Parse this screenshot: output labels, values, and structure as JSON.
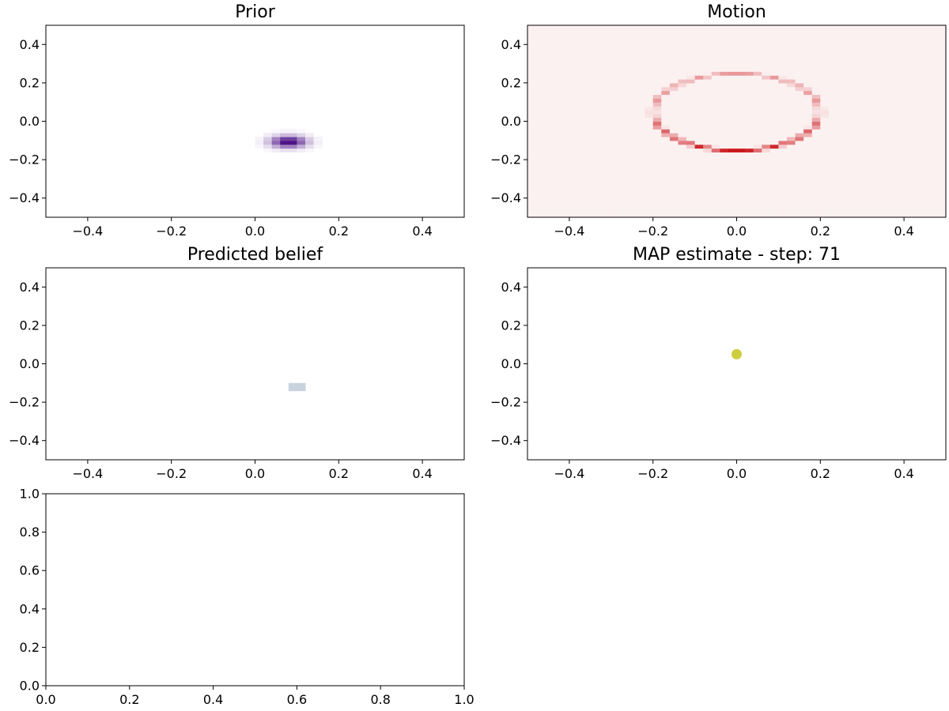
{
  "chart_data": [
    {
      "id": "prior",
      "type": "heatmap",
      "title": "Prior",
      "colormap": "Purples",
      "accent_color": "#3f007d",
      "xlim": [
        -0.5,
        0.5
      ],
      "ylim": [
        -0.5,
        0.5
      ],
      "xticks": [
        -0.4,
        -0.2,
        0.0,
        0.2,
        0.4
      ],
      "yticks": [
        -0.4,
        -0.2,
        0.0,
        0.2,
        0.4
      ],
      "xtick_labels": [
        "−0.4",
        "−0.2",
        "0.0",
        "0.2",
        "0.4"
      ],
      "ytick_labels": [
        "−0.4",
        "−0.2",
        "0.0",
        "0.2",
        "0.4"
      ],
      "peak": {
        "x": 0.08,
        "y": -0.105
      },
      "grid": false
    },
    {
      "id": "motion",
      "type": "heatmap",
      "title": "Motion",
      "colormap": "Reds",
      "accent_color": "#cb181d",
      "xlim": [
        -0.5,
        0.5
      ],
      "ylim": [
        -0.5,
        0.5
      ],
      "xticks": [
        -0.4,
        -0.2,
        0.0,
        0.2,
        0.4
      ],
      "yticks": [
        -0.4,
        -0.2,
        0.0,
        0.2,
        0.4
      ],
      "xtick_labels": [
        "−0.4",
        "−0.2",
        "0.0",
        "0.2",
        "0.4"
      ],
      "ytick_labels": [
        "−0.4",
        "−0.2",
        "0.0",
        "0.2",
        "0.4"
      ],
      "ring": {
        "cx": 0.0,
        "cy": 0.05,
        "rx": 0.2,
        "ry": 0.2
      },
      "grid": false
    },
    {
      "id": "predicted",
      "type": "heatmap",
      "title": "Predicted belief",
      "colormap": "Blues",
      "accent_color": "#08306b",
      "xlim": [
        -0.5,
        0.5
      ],
      "ylim": [
        -0.5,
        0.5
      ],
      "xticks": [
        -0.4,
        -0.2,
        0.0,
        0.2,
        0.4
      ],
      "yticks": [
        -0.4,
        -0.2,
        0.0,
        0.2,
        0.4
      ],
      "xtick_labels": [
        "−0.4",
        "−0.2",
        "0.0",
        "0.2",
        "0.4"
      ],
      "ytick_labels": [
        "−0.4",
        "−0.2",
        "0.0",
        "0.2",
        "0.4"
      ],
      "peak": {
        "x": 0.1,
        "y": -0.12
      },
      "grid": false
    },
    {
      "id": "map",
      "type": "scatter",
      "title": "MAP estimate - step: 71",
      "point_color": "#c8c82a",
      "points": [
        {
          "x": 0.0,
          "y": 0.05
        }
      ],
      "xlim": [
        -0.5,
        0.5
      ],
      "ylim": [
        -0.5,
        0.5
      ],
      "xticks": [
        -0.4,
        -0.2,
        0.0,
        0.2,
        0.4
      ],
      "yticks": [
        -0.4,
        -0.2,
        0.0,
        0.2,
        0.4
      ],
      "xtick_labels": [
        "−0.4",
        "−0.2",
        "0.0",
        "0.2",
        "0.4"
      ],
      "ytick_labels": [
        "−0.4",
        "−0.2",
        "0.0",
        "0.2",
        "0.4"
      ],
      "grid": false
    },
    {
      "id": "empty",
      "type": "line",
      "title": "",
      "series": [],
      "xlim": [
        0.0,
        1.0
      ],
      "ylim": [
        0.0,
        1.0
      ],
      "xticks": [
        0.0,
        0.2,
        0.4,
        0.6,
        0.8,
        1.0
      ],
      "yticks": [
        0.0,
        0.2,
        0.4,
        0.6,
        0.8,
        1.0
      ],
      "xtick_labels": [
        "0.0",
        "0.2",
        "0.4",
        "0.6",
        "0.8",
        "1.0"
      ],
      "ytick_labels": [
        "0.0",
        "0.2",
        "0.4",
        "0.6",
        "0.8",
        "1.0"
      ],
      "grid": false
    }
  ]
}
